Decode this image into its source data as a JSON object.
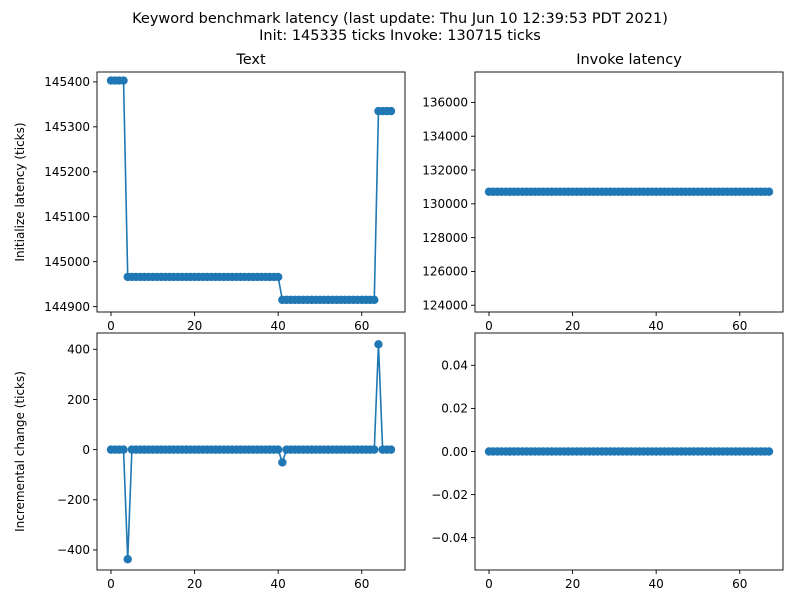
{
  "suptitle": {
    "line1": "Keyword benchmark latency (last update: Thu Jun 10 12:39:53 PDT 2021)",
    "line2": "Init: 145335 ticks Invoke: 130715 ticks"
  },
  "colors": {
    "series": "#1f77b4",
    "axes": "#000000",
    "background": "#ffffff"
  },
  "chart_data": [
    {
      "id": "init_latency",
      "type": "line",
      "markers": "circle",
      "title": "Text",
      "xlabel": "",
      "ylabel": "Initialize latency (ticks)",
      "xlim": [
        -3.35,
        70.35
      ],
      "ylim": [
        144888,
        145422
      ],
      "xticks": [
        0,
        20,
        40,
        60
      ],
      "yticks": [
        144900,
        145000,
        145100,
        145200,
        145300,
        145400
      ],
      "grid": false,
      "segments": [
        {
          "from": 0,
          "to": 3,
          "value": 145403
        },
        {
          "from": 4,
          "to": 40,
          "value": 144966
        },
        {
          "from": 41,
          "to": 63,
          "value": 144915
        },
        {
          "from": 64,
          "to": 67,
          "value": 145335
        }
      ]
    },
    {
      "id": "invoke_latency",
      "type": "line",
      "markers": "circle",
      "title": "Invoke latency",
      "xlabel": "",
      "ylabel": "",
      "xlim": [
        -3.35,
        70.35
      ],
      "ylim": [
        123600,
        137800
      ],
      "xticks": [
        0,
        20,
        40,
        60
      ],
      "yticks": [
        124000,
        126000,
        128000,
        130000,
        132000,
        134000,
        136000
      ],
      "grid": false,
      "segments": [
        {
          "from": 0,
          "to": 67,
          "value": 130715
        }
      ]
    },
    {
      "id": "init_incremental",
      "type": "line",
      "markers": "circle",
      "title": "",
      "xlabel": "",
      "ylabel": "Incremental change (ticks)",
      "xlim": [
        -3.35,
        70.35
      ],
      "ylim": [
        -480,
        465
      ],
      "xticks": [
        0,
        20,
        40,
        60
      ],
      "yticks": [
        -400,
        -200,
        0,
        200,
        400
      ],
      "grid": false,
      "segments": [
        {
          "from": 0,
          "to": 67,
          "value": 0
        }
      ],
      "overrides": [
        {
          "x": 4,
          "y": -437
        },
        {
          "x": 41,
          "y": -51
        },
        {
          "x": 64,
          "y": 420
        }
      ]
    },
    {
      "id": "invoke_incremental",
      "type": "line",
      "markers": "circle",
      "title": "",
      "xlabel": "",
      "ylabel": "",
      "xlim": [
        -3.35,
        70.35
      ],
      "ylim": [
        -0.055,
        0.055
      ],
      "xticks": [
        0,
        20,
        40,
        60
      ],
      "yticks": [
        -0.04,
        -0.02,
        0.0,
        0.02,
        0.04
      ],
      "ytick_decimals": 2,
      "grid": false,
      "segments": [
        {
          "from": 0,
          "to": 67,
          "value": 0
        }
      ]
    }
  ]
}
